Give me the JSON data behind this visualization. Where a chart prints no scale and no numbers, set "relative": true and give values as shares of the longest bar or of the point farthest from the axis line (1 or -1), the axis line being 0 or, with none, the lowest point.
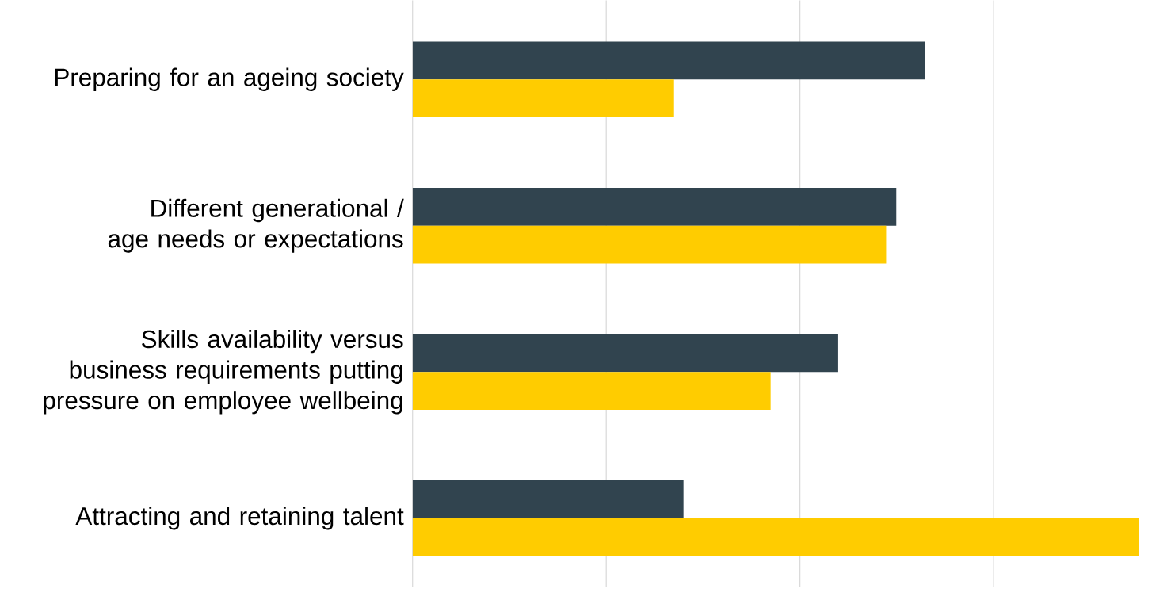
{
  "chart_data": {
    "type": "bar",
    "orientation": "horizontal",
    "relative": true,
    "grid": "x",
    "categories": [
      "Preparing for an ageing society",
      "Different generational / age needs or expectations",
      "Skills availability versus business requirements putting pressure on employee wellbeing",
      "Attracting and retaining talent"
    ],
    "series": [
      {
        "color": "#31444f",
        "values": [
          0.705,
          0.666,
          0.586,
          0.373
        ]
      },
      {
        "color": "#ffcc00",
        "values": [
          0.36,
          0.652,
          0.493,
          1.0
        ]
      }
    ]
  }
}
